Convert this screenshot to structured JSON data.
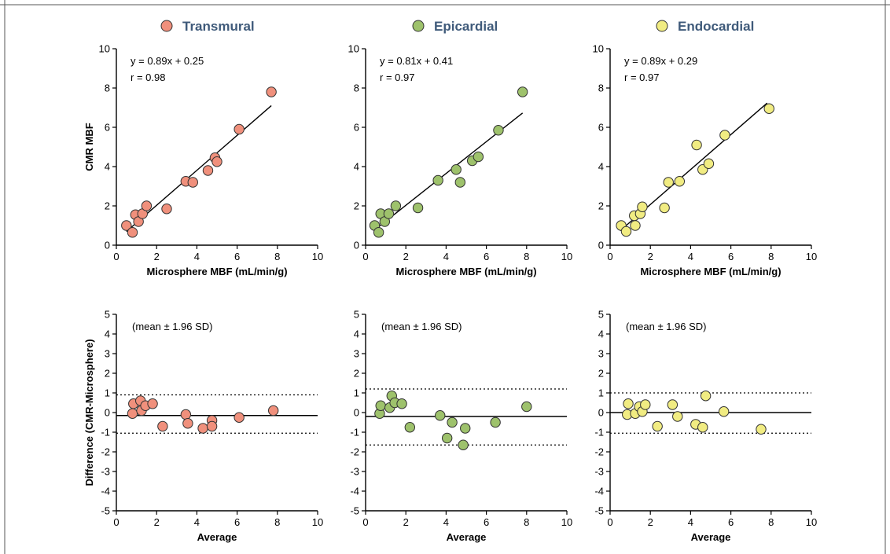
{
  "colors": {
    "Transmural": "#f0907c",
    "Epicardial": "#9ec26c",
    "Endocardial": "#f1ec82",
    "legend_text": "#3f5a7a"
  },
  "chart_data": [
    {
      "type": "scatter",
      "series_name": "Transmural",
      "title": "",
      "xlabel": "Microsphere MBF (mL/min/g)",
      "ylabel": "CMR MBF",
      "xlim": [
        0,
        10
      ],
      "ylim": [
        0,
        10
      ],
      "xticks": [
        "0",
        "2",
        "4",
        "6",
        "8",
        "10"
      ],
      "yticks": [
        "0",
        "2",
        "4",
        "6",
        "8",
        "10"
      ],
      "annotations": [
        "y = 0.89x + 0.25",
        "r = 0.98"
      ],
      "fit": {
        "slope": 0.89,
        "intercept": 0.25,
        "x_range": [
          0.5,
          7.7
        ]
      },
      "points": [
        [
          0.5,
          1.0
        ],
        [
          0.8,
          0.65
        ],
        [
          0.95,
          1.55
        ],
        [
          1.1,
          1.2
        ],
        [
          1.3,
          1.6
        ],
        [
          1.5,
          2.0
        ],
        [
          2.5,
          1.85
        ],
        [
          3.45,
          3.25
        ],
        [
          3.8,
          3.2
        ],
        [
          4.55,
          3.8
        ],
        [
          4.9,
          4.45
        ],
        [
          5.0,
          4.25
        ],
        [
          6.1,
          5.9
        ],
        [
          7.7,
          7.8
        ]
      ]
    },
    {
      "type": "scatter",
      "series_name": "Epicardial",
      "title": "",
      "xlabel": "Microsphere MBF (mL/min/g)",
      "ylabel": "",
      "xlim": [
        0,
        10
      ],
      "ylim": [
        0,
        10
      ],
      "xticks": [
        "0",
        "2",
        "4",
        "6",
        "8",
        "10"
      ],
      "yticks": [
        "0",
        "2",
        "4",
        "6",
        "8",
        "10"
      ],
      "annotations": [
        "y = 0.81x + 0.41",
        "r = 0.97"
      ],
      "fit": {
        "slope": 0.81,
        "intercept": 0.41,
        "x_range": [
          0.5,
          7.8
        ]
      },
      "points": [
        [
          0.45,
          1.0
        ],
        [
          0.65,
          0.65
        ],
        [
          0.75,
          1.6
        ],
        [
          0.95,
          1.2
        ],
        [
          1.15,
          1.6
        ],
        [
          1.5,
          2.0
        ],
        [
          2.6,
          1.9
        ],
        [
          3.6,
          3.3
        ],
        [
          4.5,
          3.85
        ],
        [
          4.7,
          3.2
        ],
        [
          5.3,
          4.3
        ],
        [
          5.6,
          4.5
        ],
        [
          6.6,
          5.85
        ],
        [
          7.8,
          7.8
        ]
      ]
    },
    {
      "type": "scatter",
      "series_name": "Endocardial",
      "title": "",
      "xlabel": "Microsphere MBF (mL/min/g)",
      "ylabel": "",
      "xlim": [
        0,
        10
      ],
      "ylim": [
        0,
        10
      ],
      "xticks": [
        "0",
        "2",
        "4",
        "6",
        "8",
        "10"
      ],
      "yticks": [
        "0",
        "2",
        "4",
        "6",
        "8",
        "10"
      ],
      "annotations": [
        "y = 0.89x + 0.29",
        "r = 0.97"
      ],
      "fit": {
        "slope": 0.89,
        "intercept": 0.29,
        "x_range": [
          0.5,
          7.8
        ]
      },
      "points": [
        [
          0.55,
          1.0
        ],
        [
          0.8,
          0.7
        ],
        [
          1.2,
          1.5
        ],
        [
          1.25,
          1.0
        ],
        [
          1.5,
          1.6
        ],
        [
          1.6,
          1.95
        ],
        [
          2.7,
          1.9
        ],
        [
          2.9,
          3.2
        ],
        [
          3.45,
          3.25
        ],
        [
          4.3,
          5.1
        ],
        [
          4.6,
          3.85
        ],
        [
          4.9,
          4.15
        ],
        [
          5.7,
          5.6
        ],
        [
          7.9,
          6.95
        ]
      ]
    },
    {
      "type": "scatter",
      "series_name": "Transmural",
      "title": "",
      "xlabel": "Average",
      "ylabel": "Difference (CMR-Microsphere)",
      "xlim": [
        0,
        10
      ],
      "ylim": [
        -5,
        5
      ],
      "xticks": [
        "0",
        "2",
        "4",
        "6",
        "8",
        "10"
      ],
      "yticks": [
        "-5",
        "-4",
        "-3",
        "-2",
        "-1",
        "0",
        "1",
        "2",
        "3",
        "4",
        "5"
      ],
      "annotations": [
        "(mean ± 1.96 SD)"
      ],
      "mean": -0.15,
      "loa": [
        0.9,
        -1.05
      ],
      "points": [
        [
          0.8,
          -0.05
        ],
        [
          0.85,
          0.45
        ],
        [
          1.2,
          0.6
        ],
        [
          1.25,
          0.1
        ],
        [
          1.45,
          0.35
        ],
        [
          1.8,
          0.45
        ],
        [
          2.3,
          -0.7
        ],
        [
          3.45,
          -0.1
        ],
        [
          3.55,
          -0.55
        ],
        [
          4.3,
          -0.8
        ],
        [
          4.75,
          -0.4
        ],
        [
          4.75,
          -0.7
        ],
        [
          6.1,
          -0.25
        ],
        [
          7.8,
          0.1
        ]
      ]
    },
    {
      "type": "scatter",
      "series_name": "Epicardial",
      "title": "",
      "xlabel": "Average",
      "ylabel": "",
      "xlim": [
        0,
        10
      ],
      "ylim": [
        -5,
        5
      ],
      "xticks": [
        "0",
        "2",
        "4",
        "6",
        "8",
        "10"
      ],
      "yticks": [
        "-5",
        "-4",
        "-3",
        "-2",
        "-1",
        "0",
        "1",
        "2",
        "3",
        "4",
        "5"
      ],
      "annotations": [
        "(mean ± 1.96 SD)"
      ],
      "mean": -0.2,
      "loa": [
        1.2,
        -1.65
      ],
      "points": [
        [
          0.7,
          -0.05
        ],
        [
          0.75,
          0.35
        ],
        [
          1.2,
          0.25
        ],
        [
          1.3,
          0.85
        ],
        [
          1.45,
          0.5
        ],
        [
          1.8,
          0.45
        ],
        [
          2.2,
          -0.75
        ],
        [
          3.7,
          -0.15
        ],
        [
          4.05,
          -1.3
        ],
        [
          4.3,
          -0.5
        ],
        [
          4.85,
          -1.65
        ],
        [
          4.95,
          -0.8
        ],
        [
          6.45,
          -0.5
        ],
        [
          8.0,
          0.3
        ]
      ]
    },
    {
      "type": "scatter",
      "series_name": "Endocardial",
      "title": "",
      "xlabel": "Average",
      "ylabel": "",
      "xlim": [
        0,
        10
      ],
      "ylim": [
        -5,
        5
      ],
      "xticks": [
        "0",
        "2",
        "4",
        "6",
        "8",
        "10"
      ],
      "yticks": [
        "-5",
        "-4",
        "-3",
        "-2",
        "-1",
        "0",
        "1",
        "2",
        "3",
        "4",
        "5"
      ],
      "annotations": [
        "(mean ± 1.96 SD)"
      ],
      "mean": 0.0,
      "loa": [
        1.0,
        -1.05
      ],
      "points": [
        [
          0.85,
          -0.1
        ],
        [
          0.9,
          0.45
        ],
        [
          1.25,
          -0.05
        ],
        [
          1.45,
          0.3
        ],
        [
          1.6,
          0.05
        ],
        [
          1.75,
          0.4
        ],
        [
          2.35,
          -0.7
        ],
        [
          3.1,
          0.4
        ],
        [
          3.35,
          -0.2
        ],
        [
          4.25,
          -0.6
        ],
        [
          4.6,
          -0.75
        ],
        [
          4.75,
          0.85
        ],
        [
          5.65,
          0.05
        ],
        [
          7.5,
          -0.85
        ]
      ]
    }
  ],
  "legend": [
    {
      "label": "Transmural",
      "color_key": "Transmural"
    },
    {
      "label": "Epicardial",
      "color_key": "Epicardial"
    },
    {
      "label": "Endocardial",
      "color_key": "Endocardial"
    }
  ]
}
